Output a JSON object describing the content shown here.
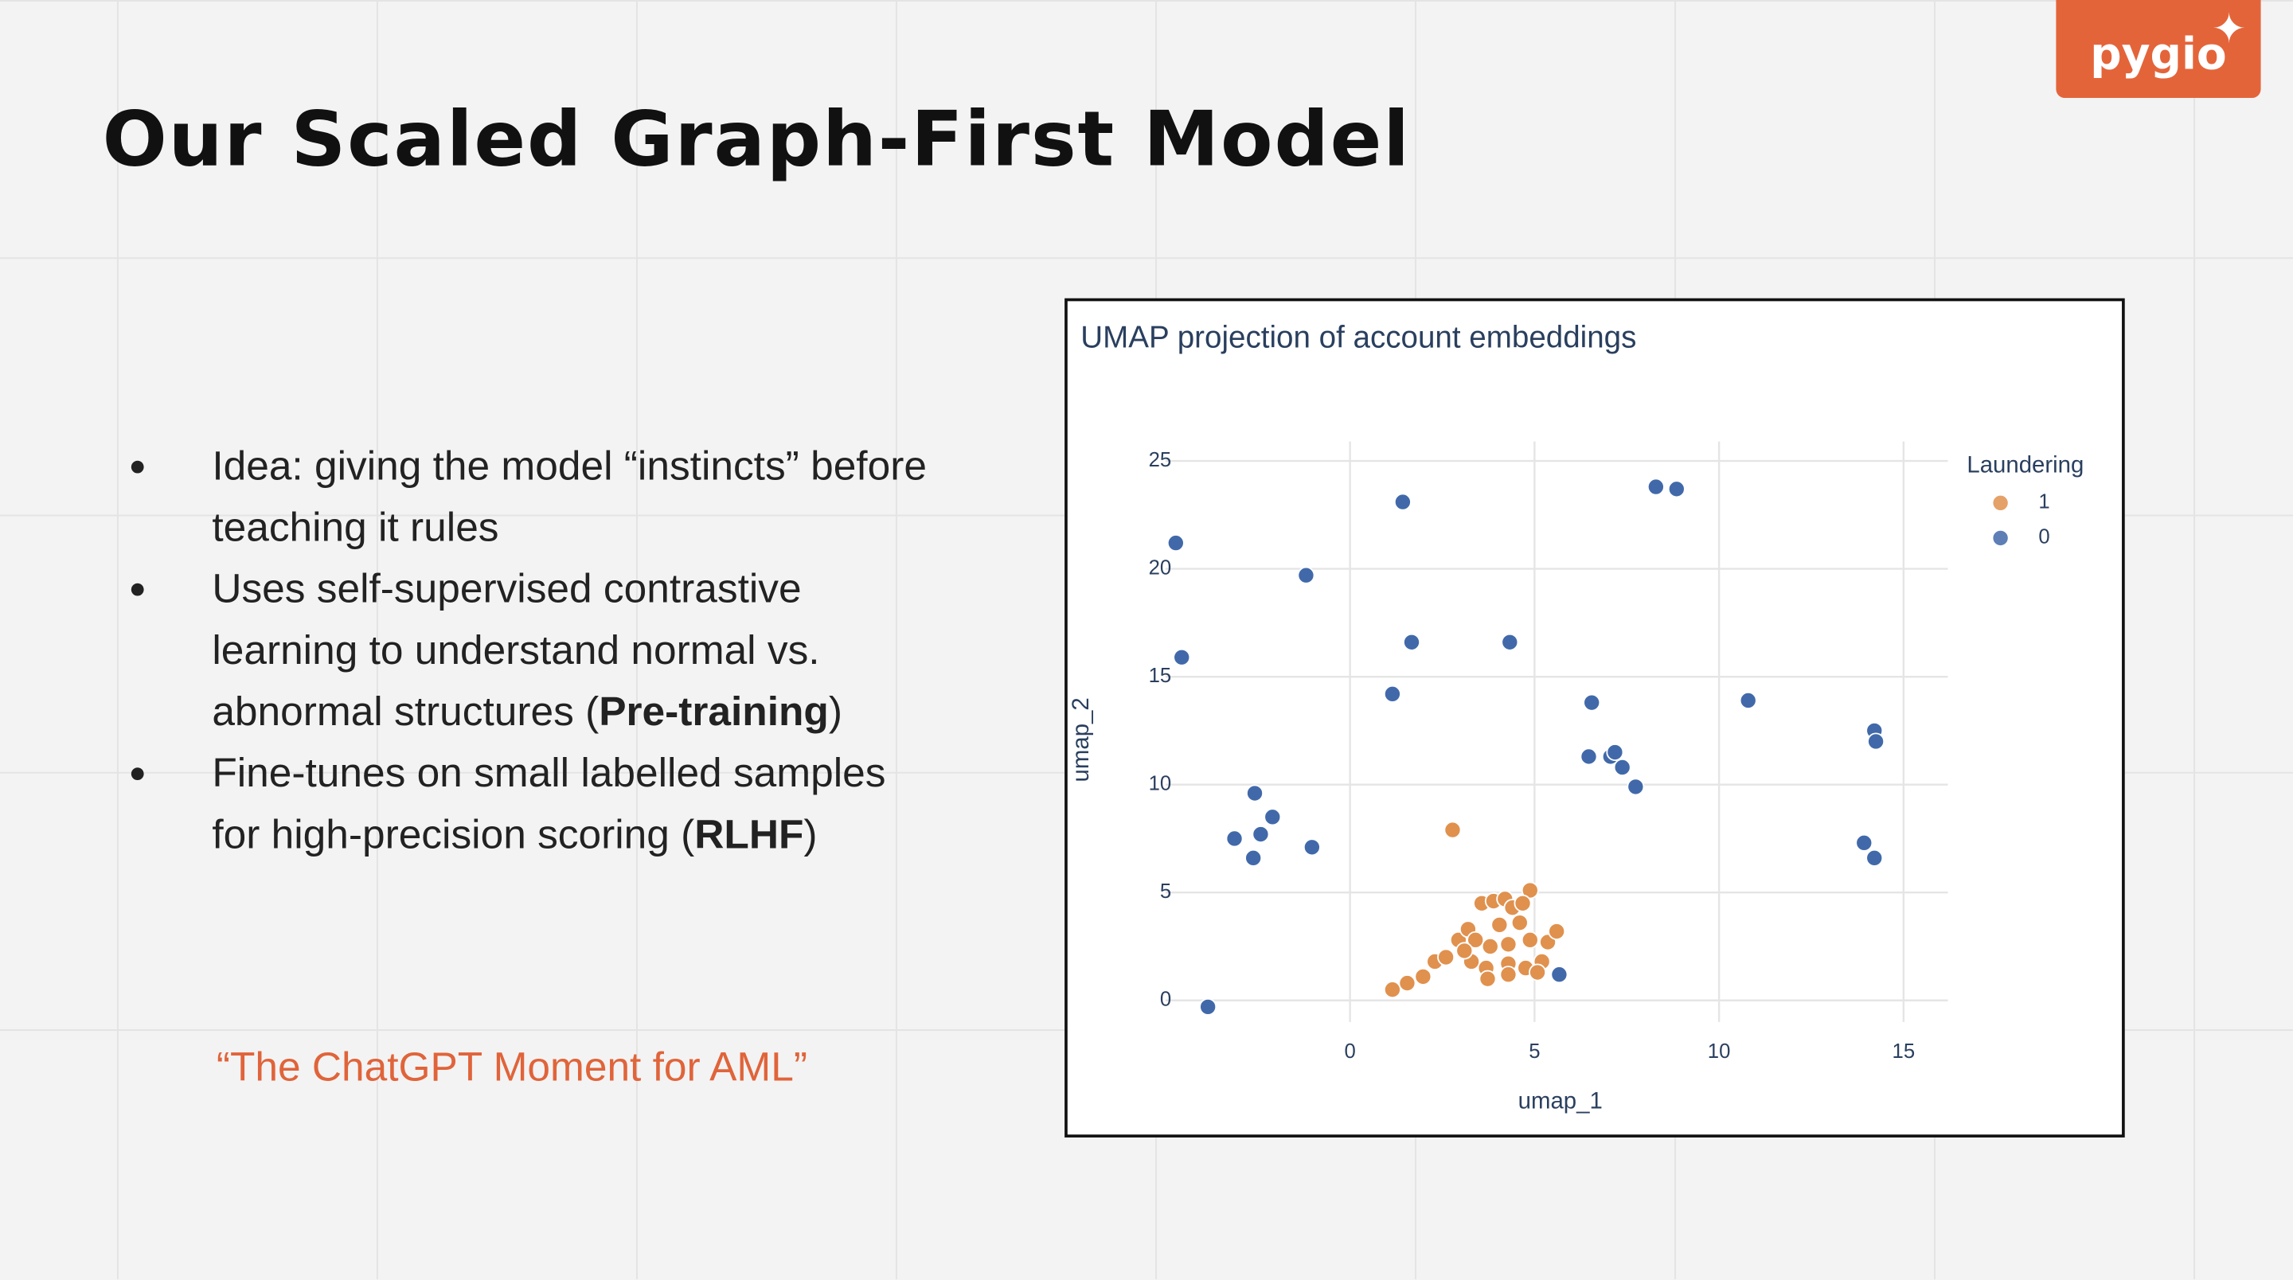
{
  "logo": "pygio",
  "title": "Our Scaled Graph-First Model",
  "bullets": [
    [
      "Idea: giving the model “instincts” before teaching it rules"
    ],
    [
      "Uses self-supervised contrastive learning to understand normal vs. abnormal structures (",
      "Pre-training",
      ")"
    ],
    [
      "Fine-tunes on small labelled samples for high-precision scoring (",
      "RLHF",
      ")"
    ]
  ],
  "quote": "“The ChatGPT Moment for AML”",
  "chart_data": {
    "type": "scatter",
    "title": "UMAP projection of account embeddings",
    "x_label": "umap_1",
    "y_label": "umap_2",
    "legend_title": "Laundering",
    "legend": "top-right",
    "grid": true,
    "xlim": [
      -5,
      16.2
    ],
    "ylim": [
      -1,
      25.9
    ],
    "xticks": [
      0,
      5,
      10,
      15
    ],
    "yticks": [
      0,
      5,
      10,
      15,
      20,
      25
    ],
    "series": [
      {
        "name": "1",
        "color": "#e0914e",
        "x": [
          2.78,
          1.15,
          1.55,
          1.98,
          2.3,
          2.6,
          2.94,
          3.2,
          3.57,
          3.89,
          4.2,
          4.4,
          4.88,
          4.68,
          3.4,
          3.8,
          4.29,
          4.88,
          5.36,
          5.6,
          3.29,
          3.69,
          4.29,
          4.76,
          5.2,
          3.73,
          4.29,
          5.08,
          3.1,
          4.05,
          4.6
        ],
        "values": [
          7.9,
          0.5,
          0.8,
          1.1,
          1.8,
          2.0,
          2.8,
          3.3,
          4.5,
          4.6,
          4.7,
          4.3,
          5.1,
          4.5,
          2.8,
          2.5,
          2.6,
          2.8,
          2.7,
          3.2,
          1.8,
          1.5,
          1.7,
          1.5,
          1.8,
          1.0,
          1.2,
          1.3,
          2.3,
          3.5,
          3.6
        ]
      },
      {
        "name": "0",
        "color": "#4169aa",
        "x": [
          -4.72,
          -4.56,
          -3.85,
          1.43,
          -1.19,
          1.67,
          4.33,
          1.15,
          -2.58,
          -2.1,
          -3.13,
          -2.42,
          -2.62,
          -1.03,
          8.29,
          8.85,
          6.55,
          6.47,
          7.06,
          7.38,
          7.74,
          7.18,
          10.79,
          14.21,
          14.25,
          13.93,
          14.21,
          5.67
        ],
        "values": [
          21.2,
          15.9,
          -0.3,
          23.1,
          19.7,
          16.6,
          16.6,
          14.2,
          9.6,
          8.5,
          7.5,
          7.7,
          6.6,
          7.1,
          23.8,
          23.7,
          13.8,
          11.3,
          11.3,
          10.8,
          9.9,
          11.5,
          13.9,
          12.5,
          12.0,
          7.3,
          6.6,
          1.2
        ]
      }
    ]
  }
}
